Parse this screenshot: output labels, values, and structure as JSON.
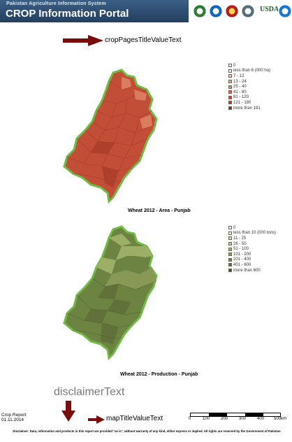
{
  "header": {
    "subtitle": "Pakistan Agriculture Information System",
    "title": "CROP Information Portal",
    "logos": [
      "punjab-seal-icon",
      "suparco-seal-icon",
      "university-seal-icon",
      "partner-seal-icon",
      "usda-icon",
      "fao-icon"
    ],
    "usda_label": "USDA"
  },
  "title_hint": "cropPagesTitleValueText",
  "map1": {
    "caption": "Wheat 2012 - Area - Punjab",
    "fill": "#c24e37",
    "border": "#6fbb45",
    "legend": [
      {
        "label": "0",
        "color": "#eeeeee"
      },
      {
        "label": "less than 6 (000 ha)",
        "color": "#fbeae3"
      },
      {
        "label": "7 - 12",
        "color": "#f4c6b3"
      },
      {
        "label": "13 - 24",
        "color": "#eba488"
      },
      {
        "label": "25 - 40",
        "color": "#e08566"
      },
      {
        "label": "41 - 80",
        "color": "#d66a4d"
      },
      {
        "label": "81 - 120",
        "color": "#c9533b"
      },
      {
        "label": "121 - 180",
        "color": "#b8432d"
      },
      {
        "label": "more than 181",
        "color": "#8e2e1e"
      }
    ]
  },
  "map2": {
    "caption": "Wheat 2012 - Production - Punjab",
    "fill": "#6c8342",
    "border": "#6fbb45",
    "legend": [
      {
        "label": "0",
        "color": "#eeeeee"
      },
      {
        "label": "less than 10 (000 tons)",
        "color": "#eef2d5"
      },
      {
        "label": "11 - 25",
        "color": "#d9e2a6"
      },
      {
        "label": "26 - 50",
        "color": "#bccb82"
      },
      {
        "label": "51 - 100",
        "color": "#a3b46a"
      },
      {
        "label": "101 - 200",
        "color": "#8a9c56"
      },
      {
        "label": "201 - 400",
        "color": "#728445"
      },
      {
        "label": "401 - 600",
        "color": "#5e6e38"
      },
      {
        "label": "more than 600",
        "color": "#47552a"
      }
    ]
  },
  "disclaimer_hint": "disclaimerText",
  "report": {
    "line1": "Crop Report",
    "line2": "01.11.2014"
  },
  "maptitle_hint": "mapTitleValueText",
  "scale": {
    "ticks": [
      "0",
      "100",
      "200",
      "300",
      "400",
      "500km"
    ]
  },
  "disclaimer": "Disclaimer: Data, information and products in this report are provided \"as is\", without warranty of any kind, either express or implied. All rights are reserved by the Government of Pakistan",
  "colors": {
    "header": "#2b4a6b",
    "arrow": "#7a0c0c"
  }
}
